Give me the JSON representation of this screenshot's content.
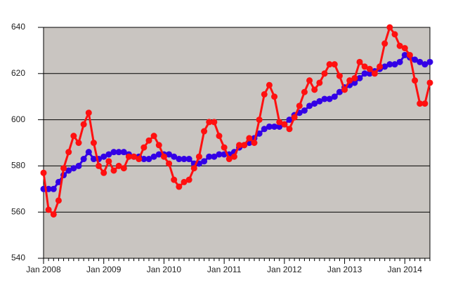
{
  "chart_data": {
    "type": "line",
    "categories": [
      "Jan 2008",
      null,
      null,
      null,
      null,
      null,
      null,
      null,
      null,
      null,
      null,
      null,
      "Jan 2009",
      null,
      null,
      null,
      null,
      null,
      null,
      null,
      null,
      null,
      null,
      null,
      "Jan 2010",
      null,
      null,
      null,
      null,
      null,
      null,
      null,
      null,
      null,
      null,
      null,
      "Jan 2011",
      null,
      null,
      null,
      null,
      null,
      null,
      null,
      null,
      null,
      null,
      null,
      "Jan 2012",
      null,
      null,
      null,
      null,
      null,
      null,
      null,
      null,
      null,
      null,
      null,
      "Jan 2013",
      null,
      null,
      null,
      null,
      null,
      null,
      null,
      null,
      null,
      null,
      null,
      "Jan 2014",
      null,
      null,
      null,
      null,
      null
    ],
    "series": [
      {
        "color": "#3300e6",
        "values": [
          570,
          570,
          570,
          573,
          576,
          578,
          579,
          580,
          583,
          586,
          583,
          583,
          584,
          585,
          586,
          586,
          586,
          585,
          584,
          584,
          583,
          583,
          584,
          585,
          585,
          585,
          584,
          583,
          583,
          583,
          581,
          581,
          582,
          584,
          584,
          585,
          585,
          585,
          586,
          588,
          589,
          590,
          592,
          594,
          596,
          597,
          597,
          597,
          598,
          600,
          602,
          603,
          604,
          606,
          607,
          608,
          609,
          609,
          610,
          612,
          614,
          615,
          616,
          618,
          620,
          620,
          621,
          622,
          623,
          624,
          624,
          625,
          628,
          627,
          626,
          625,
          624,
          625
        ]
      },
      {
        "color": "#ff1010",
        "values": [
          577,
          561,
          559,
          565,
          579,
          586,
          593,
          590,
          598,
          603,
          590,
          580,
          577,
          582,
          578,
          580,
          579,
          584,
          584,
          583,
          588,
          591,
          593,
          589,
          584,
          581,
          574,
          571,
          573,
          574,
          579,
          584,
          595,
          599,
          599,
          593,
          588,
          583,
          584,
          589,
          589,
          592,
          590,
          600,
          611,
          615,
          610,
          599,
          598,
          596,
          601,
          606,
          612,
          617,
          613,
          616,
          620,
          624,
          624,
          619,
          613,
          617,
          618,
          625,
          623,
          622,
          620,
          623,
          633,
          640,
          637,
          632,
          631,
          628,
          617,
          607,
          607,
          616
        ]
      }
    ],
    "ylim": [
      540,
      640
    ],
    "yticks": [
      540,
      560,
      580,
      600,
      620,
      640
    ],
    "grid": true
  }
}
